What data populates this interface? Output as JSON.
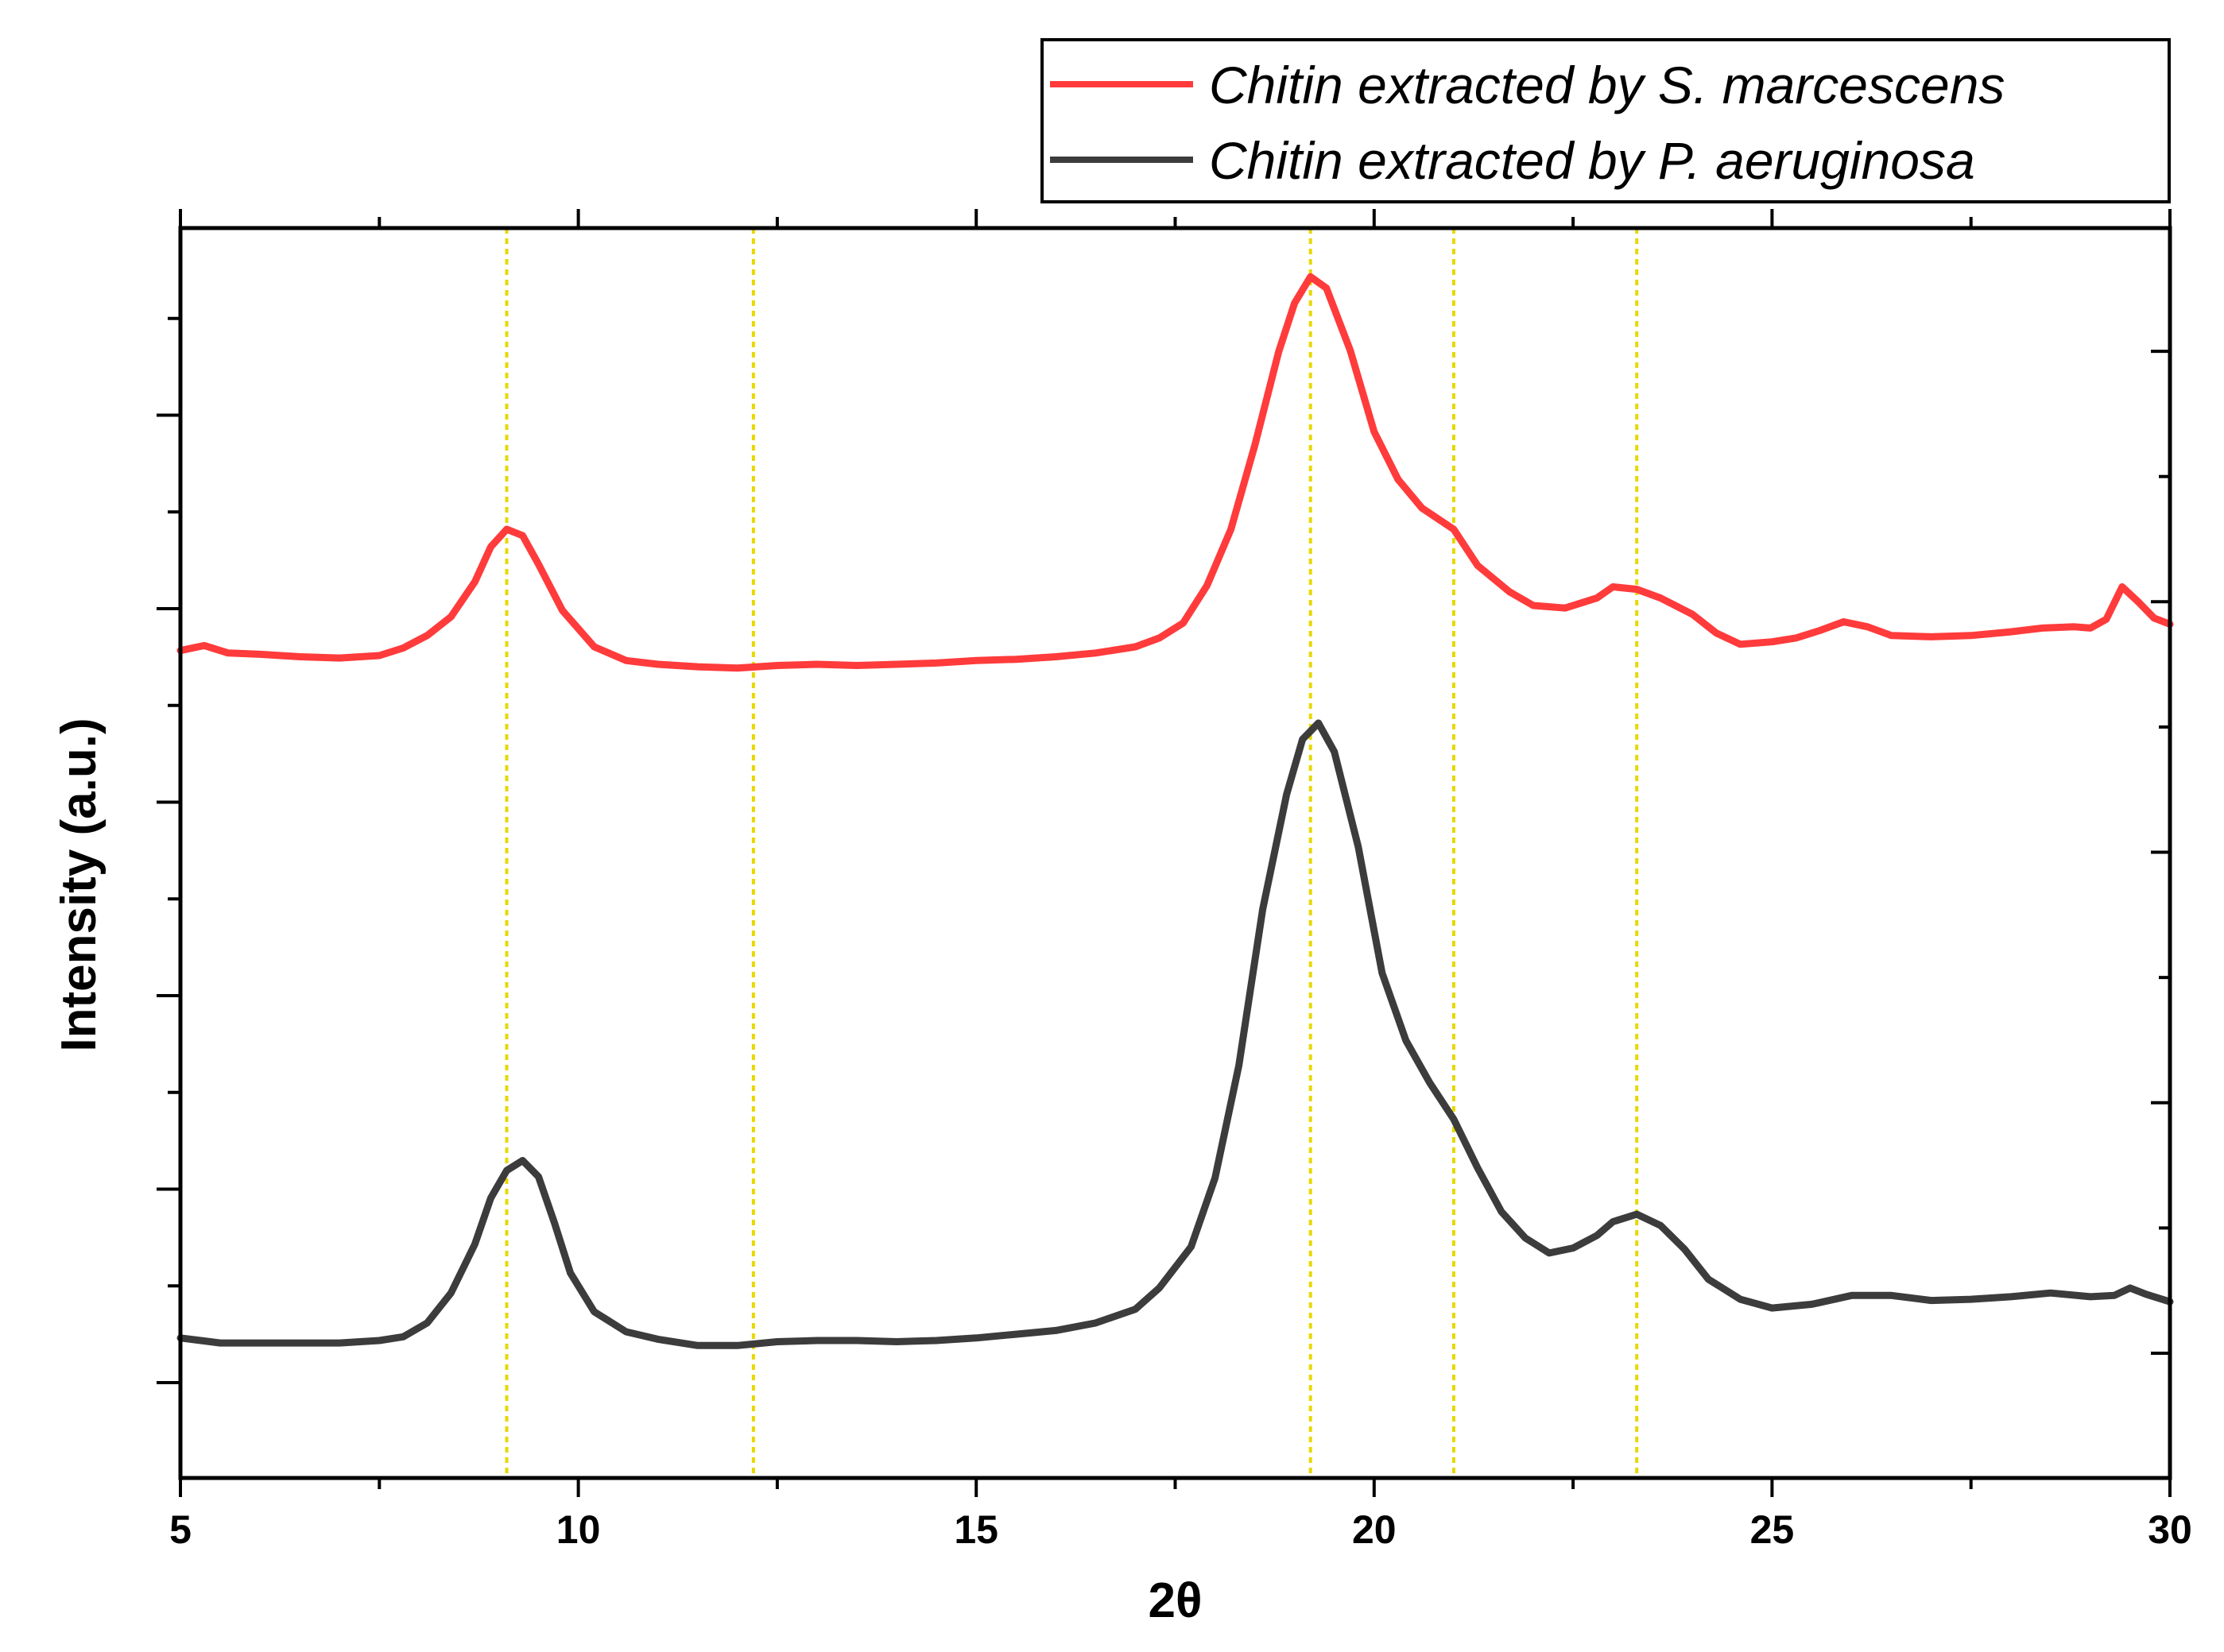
{
  "chart_data": {
    "type": "line",
    "title": "",
    "xlabel": "2θ",
    "ylabel": "Intensity (a.u.)",
    "xlim": [
      5,
      30
    ],
    "ylim": [
      0,
      100
    ],
    "x_ticks": [
      5,
      10,
      15,
      20,
      25,
      30
    ],
    "x_tick_labels": [
      "5",
      "10",
      "15",
      "20",
      "25",
      "30"
    ],
    "y_tick_labels_shown": false,
    "grid": false,
    "legend_position": "top-right, above plot",
    "reference_lines_x": [
      9.1,
      12.2,
      19.2,
      21.0,
      23.3
    ],
    "series": [
      {
        "name": "Chitin extracted by S. marcescens",
        "color": "#ff3b3b",
        "points": [
          [
            5.0,
            66.2
          ],
          [
            5.3,
            66.6
          ],
          [
            5.6,
            66.0
          ],
          [
            6.0,
            65.9
          ],
          [
            6.5,
            65.7
          ],
          [
            7.0,
            65.6
          ],
          [
            7.5,
            65.8
          ],
          [
            7.8,
            66.4
          ],
          [
            8.1,
            67.4
          ],
          [
            8.4,
            68.9
          ],
          [
            8.7,
            71.7
          ],
          [
            8.9,
            74.5
          ],
          [
            9.1,
            75.9
          ],
          [
            9.3,
            75.4
          ],
          [
            9.5,
            73.1
          ],
          [
            9.8,
            69.4
          ],
          [
            10.2,
            66.5
          ],
          [
            10.6,
            65.4
          ],
          [
            11.0,
            65.1
          ],
          [
            11.5,
            64.9
          ],
          [
            12.0,
            64.8
          ],
          [
            12.5,
            65.0
          ],
          [
            13.0,
            65.1
          ],
          [
            13.5,
            65.0
          ],
          [
            14.0,
            65.1
          ],
          [
            14.5,
            65.2
          ],
          [
            15.0,
            65.4
          ],
          [
            15.5,
            65.5
          ],
          [
            16.0,
            65.7
          ],
          [
            16.5,
            66.0
          ],
          [
            17.0,
            66.5
          ],
          [
            17.3,
            67.2
          ],
          [
            17.6,
            68.4
          ],
          [
            17.9,
            71.4
          ],
          [
            18.2,
            75.9
          ],
          [
            18.5,
            82.6
          ],
          [
            18.8,
            90.1
          ],
          [
            19.0,
            94.0
          ],
          [
            19.2,
            96.1
          ],
          [
            19.4,
            95.2
          ],
          [
            19.7,
            90.2
          ],
          [
            20.0,
            83.7
          ],
          [
            20.3,
            79.9
          ],
          [
            20.6,
            77.6
          ],
          [
            21.0,
            75.9
          ],
          [
            21.3,
            73.0
          ],
          [
            21.7,
            70.9
          ],
          [
            22.0,
            69.8
          ],
          [
            22.4,
            69.6
          ],
          [
            22.8,
            70.4
          ],
          [
            23.0,
            71.3
          ],
          [
            23.3,
            71.1
          ],
          [
            23.6,
            70.4
          ],
          [
            24.0,
            69.1
          ],
          [
            24.3,
            67.6
          ],
          [
            24.6,
            66.7
          ],
          [
            25.0,
            66.9
          ],
          [
            25.3,
            67.2
          ],
          [
            25.6,
            67.8
          ],
          [
            25.9,
            68.5
          ],
          [
            26.2,
            68.1
          ],
          [
            26.5,
            67.4
          ],
          [
            27.0,
            67.3
          ],
          [
            27.5,
            67.4
          ],
          [
            28.0,
            67.7
          ],
          [
            28.4,
            68.0
          ],
          [
            28.8,
            68.1
          ],
          [
            29.0,
            68.0
          ],
          [
            29.2,
            68.7
          ],
          [
            29.4,
            71.3
          ],
          [
            29.6,
            70.1
          ],
          [
            29.8,
            68.8
          ],
          [
            30.0,
            68.3
          ]
        ]
      },
      {
        "name": "Chitin extracted by P. aeruginosa",
        "color": "#3c3c3c",
        "points": [
          [
            5.0,
            11.2
          ],
          [
            5.5,
            10.8
          ],
          [
            6.0,
            10.8
          ],
          [
            6.5,
            10.8
          ],
          [
            7.0,
            10.8
          ],
          [
            7.5,
            11.0
          ],
          [
            7.8,
            11.3
          ],
          [
            8.1,
            12.4
          ],
          [
            8.4,
            14.8
          ],
          [
            8.7,
            18.7
          ],
          [
            8.9,
            22.4
          ],
          [
            9.1,
            24.6
          ],
          [
            9.3,
            25.4
          ],
          [
            9.5,
            24.1
          ],
          [
            9.7,
            20.4
          ],
          [
            9.9,
            16.4
          ],
          [
            10.2,
            13.3
          ],
          [
            10.6,
            11.7
          ],
          [
            11.0,
            11.1
          ],
          [
            11.5,
            10.6
          ],
          [
            12.0,
            10.6
          ],
          [
            12.5,
            10.9
          ],
          [
            13.0,
            11.0
          ],
          [
            13.5,
            11.0
          ],
          [
            14.0,
            10.9
          ],
          [
            14.5,
            11.0
          ],
          [
            15.0,
            11.2
          ],
          [
            15.5,
            11.5
          ],
          [
            16.0,
            11.8
          ],
          [
            16.5,
            12.4
          ],
          [
            17.0,
            13.5
          ],
          [
            17.3,
            15.2
          ],
          [
            17.7,
            18.5
          ],
          [
            18.0,
            24.0
          ],
          [
            18.3,
            33.0
          ],
          [
            18.6,
            45.5
          ],
          [
            18.9,
            54.7
          ],
          [
            19.1,
            59.1
          ],
          [
            19.3,
            60.4
          ],
          [
            19.5,
            58.1
          ],
          [
            19.8,
            50.5
          ],
          [
            20.1,
            40.4
          ],
          [
            20.4,
            35.0
          ],
          [
            20.7,
            31.6
          ],
          [
            21.0,
            28.7
          ],
          [
            21.3,
            24.8
          ],
          [
            21.6,
            21.3
          ],
          [
            21.9,
            19.2
          ],
          [
            22.2,
            18.0
          ],
          [
            22.5,
            18.4
          ],
          [
            22.8,
            19.4
          ],
          [
            23.0,
            20.5
          ],
          [
            23.3,
            21.1
          ],
          [
            23.6,
            20.2
          ],
          [
            23.9,
            18.3
          ],
          [
            24.2,
            15.9
          ],
          [
            24.6,
            14.3
          ],
          [
            25.0,
            13.6
          ],
          [
            25.5,
            13.9
          ],
          [
            26.0,
            14.6
          ],
          [
            26.5,
            14.6
          ],
          [
            27.0,
            14.2
          ],
          [
            27.5,
            14.3
          ],
          [
            28.0,
            14.5
          ],
          [
            28.5,
            14.8
          ],
          [
            29.0,
            14.5
          ],
          [
            29.3,
            14.6
          ],
          [
            29.5,
            15.2
          ],
          [
            29.7,
            14.7
          ],
          [
            30.0,
            14.1
          ]
        ]
      }
    ]
  }
}
